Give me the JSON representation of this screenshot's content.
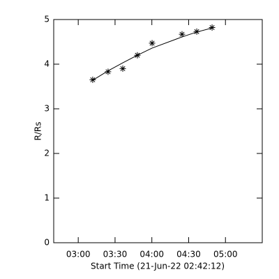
{
  "chart_data": {
    "type": "scatter",
    "x_label": "Start Time (21-Jun-22 02:42:12)",
    "y_label": "R/Rs",
    "xlim": [
      160,
      330
    ],
    "ylim": [
      0,
      5
    ],
    "xticks": [
      {
        "value": 180,
        "label": "03:00"
      },
      {
        "value": 210,
        "label": "03:30"
      },
      {
        "value": 240,
        "label": "04:00"
      },
      {
        "value": 270,
        "label": "04:30"
      },
      {
        "value": 300,
        "label": "05:00"
      }
    ],
    "yticks": [
      0,
      1,
      2,
      3,
      4,
      5
    ],
    "color": "#000000",
    "series": [
      {
        "marker": "asterisk",
        "x": [
          191.8,
          204.3,
          216.3,
          228.2,
          240.2,
          264.6,
          276.6,
          289.1
        ],
        "values": [
          3.65,
          3.83,
          3.9,
          4.2,
          4.47,
          4.67,
          4.73,
          4.82
        ]
      },
      {
        "marker": "line",
        "x": [
          191.8,
          204.3,
          216.3,
          228.2,
          240.2,
          264.6,
          276.6,
          289.1
        ],
        "values": [
          3.64,
          3.85,
          4.03,
          4.2,
          4.36,
          4.61,
          4.72,
          4.81
        ]
      }
    ]
  }
}
